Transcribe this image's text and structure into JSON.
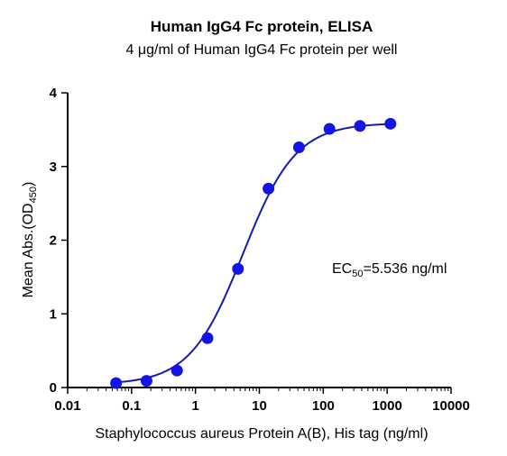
{
  "chart_data": {
    "type": "scatter",
    "title": "Human IgG4 Fc protein, ELISA",
    "subtitle": "4 μg/ml of Human IgG4 Fc protein per well",
    "xlabel": "Staphylococcus aureus Protein A(B), His tag (ng/ml)",
    "ylabel_main": "Mean Abs.(OD",
    "ylabel_sub": "450",
    "ylabel_close": ")",
    "x_scale": "log",
    "xlim": [
      0.01,
      10000
    ],
    "ylim": [
      0,
      4
    ],
    "x_ticks": [
      0.01,
      0.1,
      1,
      10,
      100,
      1000,
      10000
    ],
    "x_tick_labels": [
      "0.01",
      "0.1",
      "1",
      "10",
      "100",
      "1000",
      "10000"
    ],
    "y_ticks": [
      0,
      1,
      2,
      3,
      4
    ],
    "y_tick_labels": [
      "0",
      "1",
      "2",
      "3",
      "4"
    ],
    "grid": false,
    "legend": "none",
    "series": [
      {
        "x": [
          0.0572,
          0.1715,
          0.5144,
          1.543,
          4.63,
          13.89,
          41.67,
          125,
          375,
          1125
        ],
        "y": [
          0.06,
          0.09,
          0.23,
          0.67,
          1.61,
          2.7,
          3.26,
          3.51,
          3.55,
          3.58
        ],
        "color": "#1414e6",
        "fit": "4PL",
        "fit_params": {
          "bottom": 0.04,
          "top": 3.59,
          "ec50": 5.536,
          "hill": 1.05
        }
      }
    ],
    "annotation": {
      "label_main": "EC",
      "label_sub": "50",
      "label_rest": "=5.536 ng/ml"
    },
    "colors": {
      "marker": "#1414e6",
      "curve": "#1a1ab0",
      "axis": "#000000"
    }
  }
}
